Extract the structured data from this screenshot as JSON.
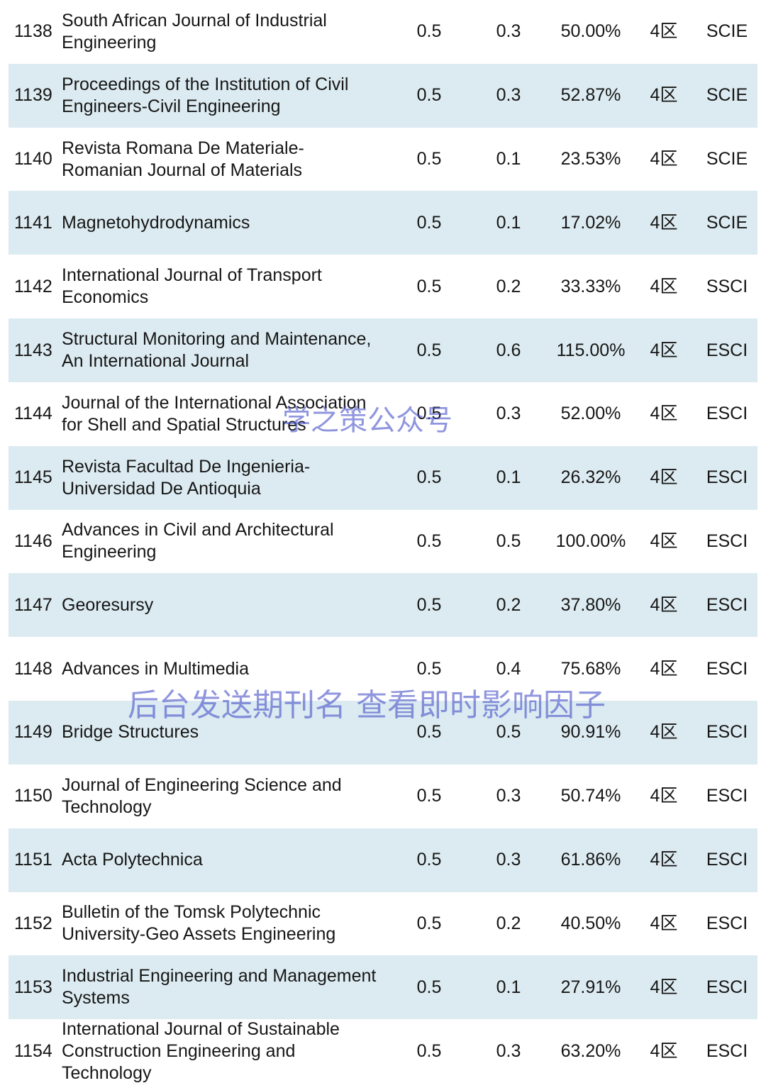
{
  "table": {
    "rows": [
      [
        1138,
        [
          "South African Journal of Industrial",
          "Engineering"
        ],
        0.5,
        0.3,
        "50.00%",
        "4区",
        "SCIE"
      ],
      [
        1139,
        [
          "Proceedings of the Institution of Civil",
          "Engineers-Civil Engineering"
        ],
        0.5,
        0.3,
        "52.87%",
        "4区",
        "SCIE"
      ],
      [
        1140,
        [
          "Revista Romana De Materiale-",
          "Romanian Journal of Materials"
        ],
        0.5,
        0.1,
        "23.53%",
        "4区",
        "SCIE"
      ],
      [
        1141,
        [
          "Magnetohydrodynamics"
        ],
        0.5,
        0.1,
        "17.02%",
        "4区",
        "SCIE"
      ],
      [
        1142,
        [
          "International Journal of Transport",
          "Economics"
        ],
        0.5,
        0.2,
        "33.33%",
        "4区",
        "SSCI"
      ],
      [
        1143,
        [
          "Structural Monitoring and Maintenance,",
          "An International Journal"
        ],
        0.5,
        0.6,
        "115.00%",
        "4区",
        "ESCI"
      ],
      [
        1144,
        [
          "Journal of the International Association",
          "for Shell and Spatial Structures"
        ],
        0.5,
        0.3,
        "52.00%",
        "4区",
        "ESCI"
      ],
      [
        1145,
        [
          "Revista Facultad De Ingenieria-",
          "Universidad De Antioquia"
        ],
        0.5,
        0.1,
        "26.32%",
        "4区",
        "ESCI"
      ],
      [
        1146,
        [
          "Advances in Civil and Architectural",
          "Engineering"
        ],
        0.5,
        0.5,
        "100.00%",
        "4区",
        "ESCI"
      ],
      [
        1147,
        [
          "Georesursy"
        ],
        0.5,
        0.2,
        "37.80%",
        "4区",
        "ESCI"
      ],
      [
        1148,
        [
          "Advances in Multimedia"
        ],
        0.5,
        0.4,
        "75.68%",
        "4区",
        "ESCI"
      ],
      [
        1149,
        [
          "Bridge Structures"
        ],
        0.5,
        0.5,
        "90.91%",
        "4区",
        "ESCI"
      ],
      [
        1150,
        [
          "Journal of Engineering Science and",
          "Technology"
        ],
        0.5,
        0.3,
        "50.74%",
        "4区",
        "ESCI"
      ],
      [
        1151,
        [
          "Acta Polytechnica"
        ],
        0.5,
        0.3,
        "61.86%",
        "4区",
        "ESCI"
      ],
      [
        1152,
        [
          "Bulletin of the Tomsk Polytechnic",
          "University-Geo Assets Engineering"
        ],
        0.5,
        0.2,
        "40.50%",
        "4区",
        "ESCI"
      ],
      [
        1153,
        [
          "Industrial Engineering and Management",
          "Systems"
        ],
        0.5,
        0.1,
        "27.91%",
        "4区",
        "ESCI"
      ],
      [
        1154,
        [
          "International Journal of Sustainable",
          "Construction Engineering and",
          "Technology"
        ],
        0.5,
        0.3,
        "63.20%",
        "4区",
        "ESCI"
      ]
    ]
  },
  "watermarks": [
    "学之策公众号",
    "后台发送期刊名 查看即时影响因子"
  ]
}
